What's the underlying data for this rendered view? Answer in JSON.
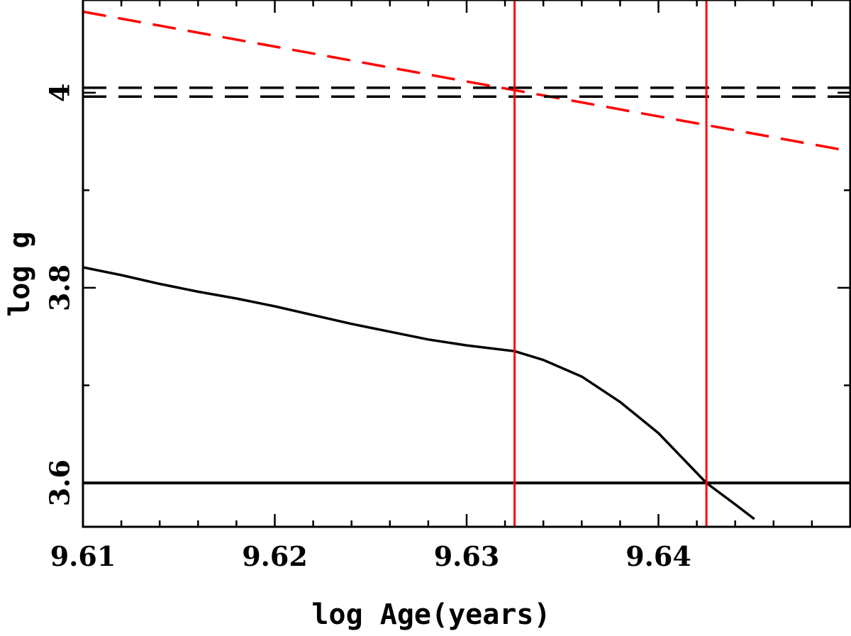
{
  "chart_data": {
    "type": "line",
    "xlabel": "log Age(years)",
    "ylabel": "log g",
    "xlim": [
      9.61,
      9.65
    ],
    "ylim": [
      3.555,
      4.095
    ],
    "xticks": [
      {
        "value": 9.61,
        "label": "9.61"
      },
      {
        "value": 9.62,
        "label": "9.62"
      },
      {
        "value": 9.63,
        "label": "9.63"
      },
      {
        "value": 9.64,
        "label": "9.64"
      }
    ],
    "x_minor_step": 0.002,
    "yticks": [
      {
        "value": 3.6,
        "label": "3.6"
      },
      {
        "value": 3.8,
        "label": "3.8"
      },
      {
        "value": 4.0,
        "label": "4"
      }
    ],
    "y_minor_step": 0.1,
    "grid": false,
    "series": [
      {
        "style": "solid",
        "color": "#000000",
        "x": [
          9.61,
          9.612,
          9.614,
          9.616,
          9.618,
          9.62,
          9.622,
          9.624,
          9.626,
          9.628,
          9.63,
          9.6325,
          9.634,
          9.636,
          9.638,
          9.64,
          9.6425,
          9.644,
          9.645
        ],
        "y": [
          3.821,
          3.813,
          3.804,
          3.796,
          3.789,
          3.781,
          3.772,
          3.763,
          3.755,
          3.747,
          3.741,
          3.735,
          3.726,
          3.709,
          3.683,
          3.651,
          3.6,
          3.578,
          3.563
        ]
      },
      {
        "style": "dashed",
        "color": "#ff0000",
        "x": [
          9.61,
          9.65
        ],
        "y": [
          4.083,
          3.94
        ]
      },
      {
        "style": "dashed",
        "color": "#000000",
        "x": [
          9.61,
          9.65
        ],
        "y": [
          4.005,
          4.005
        ]
      },
      {
        "style": "dashed",
        "color": "#000000",
        "x": [
          9.61,
          9.65
        ],
        "y": [
          3.996,
          3.996
        ]
      },
      {
        "style": "solid",
        "color": "#000000",
        "x": [
          9.61,
          9.65
        ],
        "y": [
          3.6,
          3.6
        ]
      }
    ],
    "vlines": [
      {
        "x": 9.6325,
        "color": "#ff0000"
      },
      {
        "x": 9.6425,
        "color": "#ff0000"
      }
    ]
  }
}
